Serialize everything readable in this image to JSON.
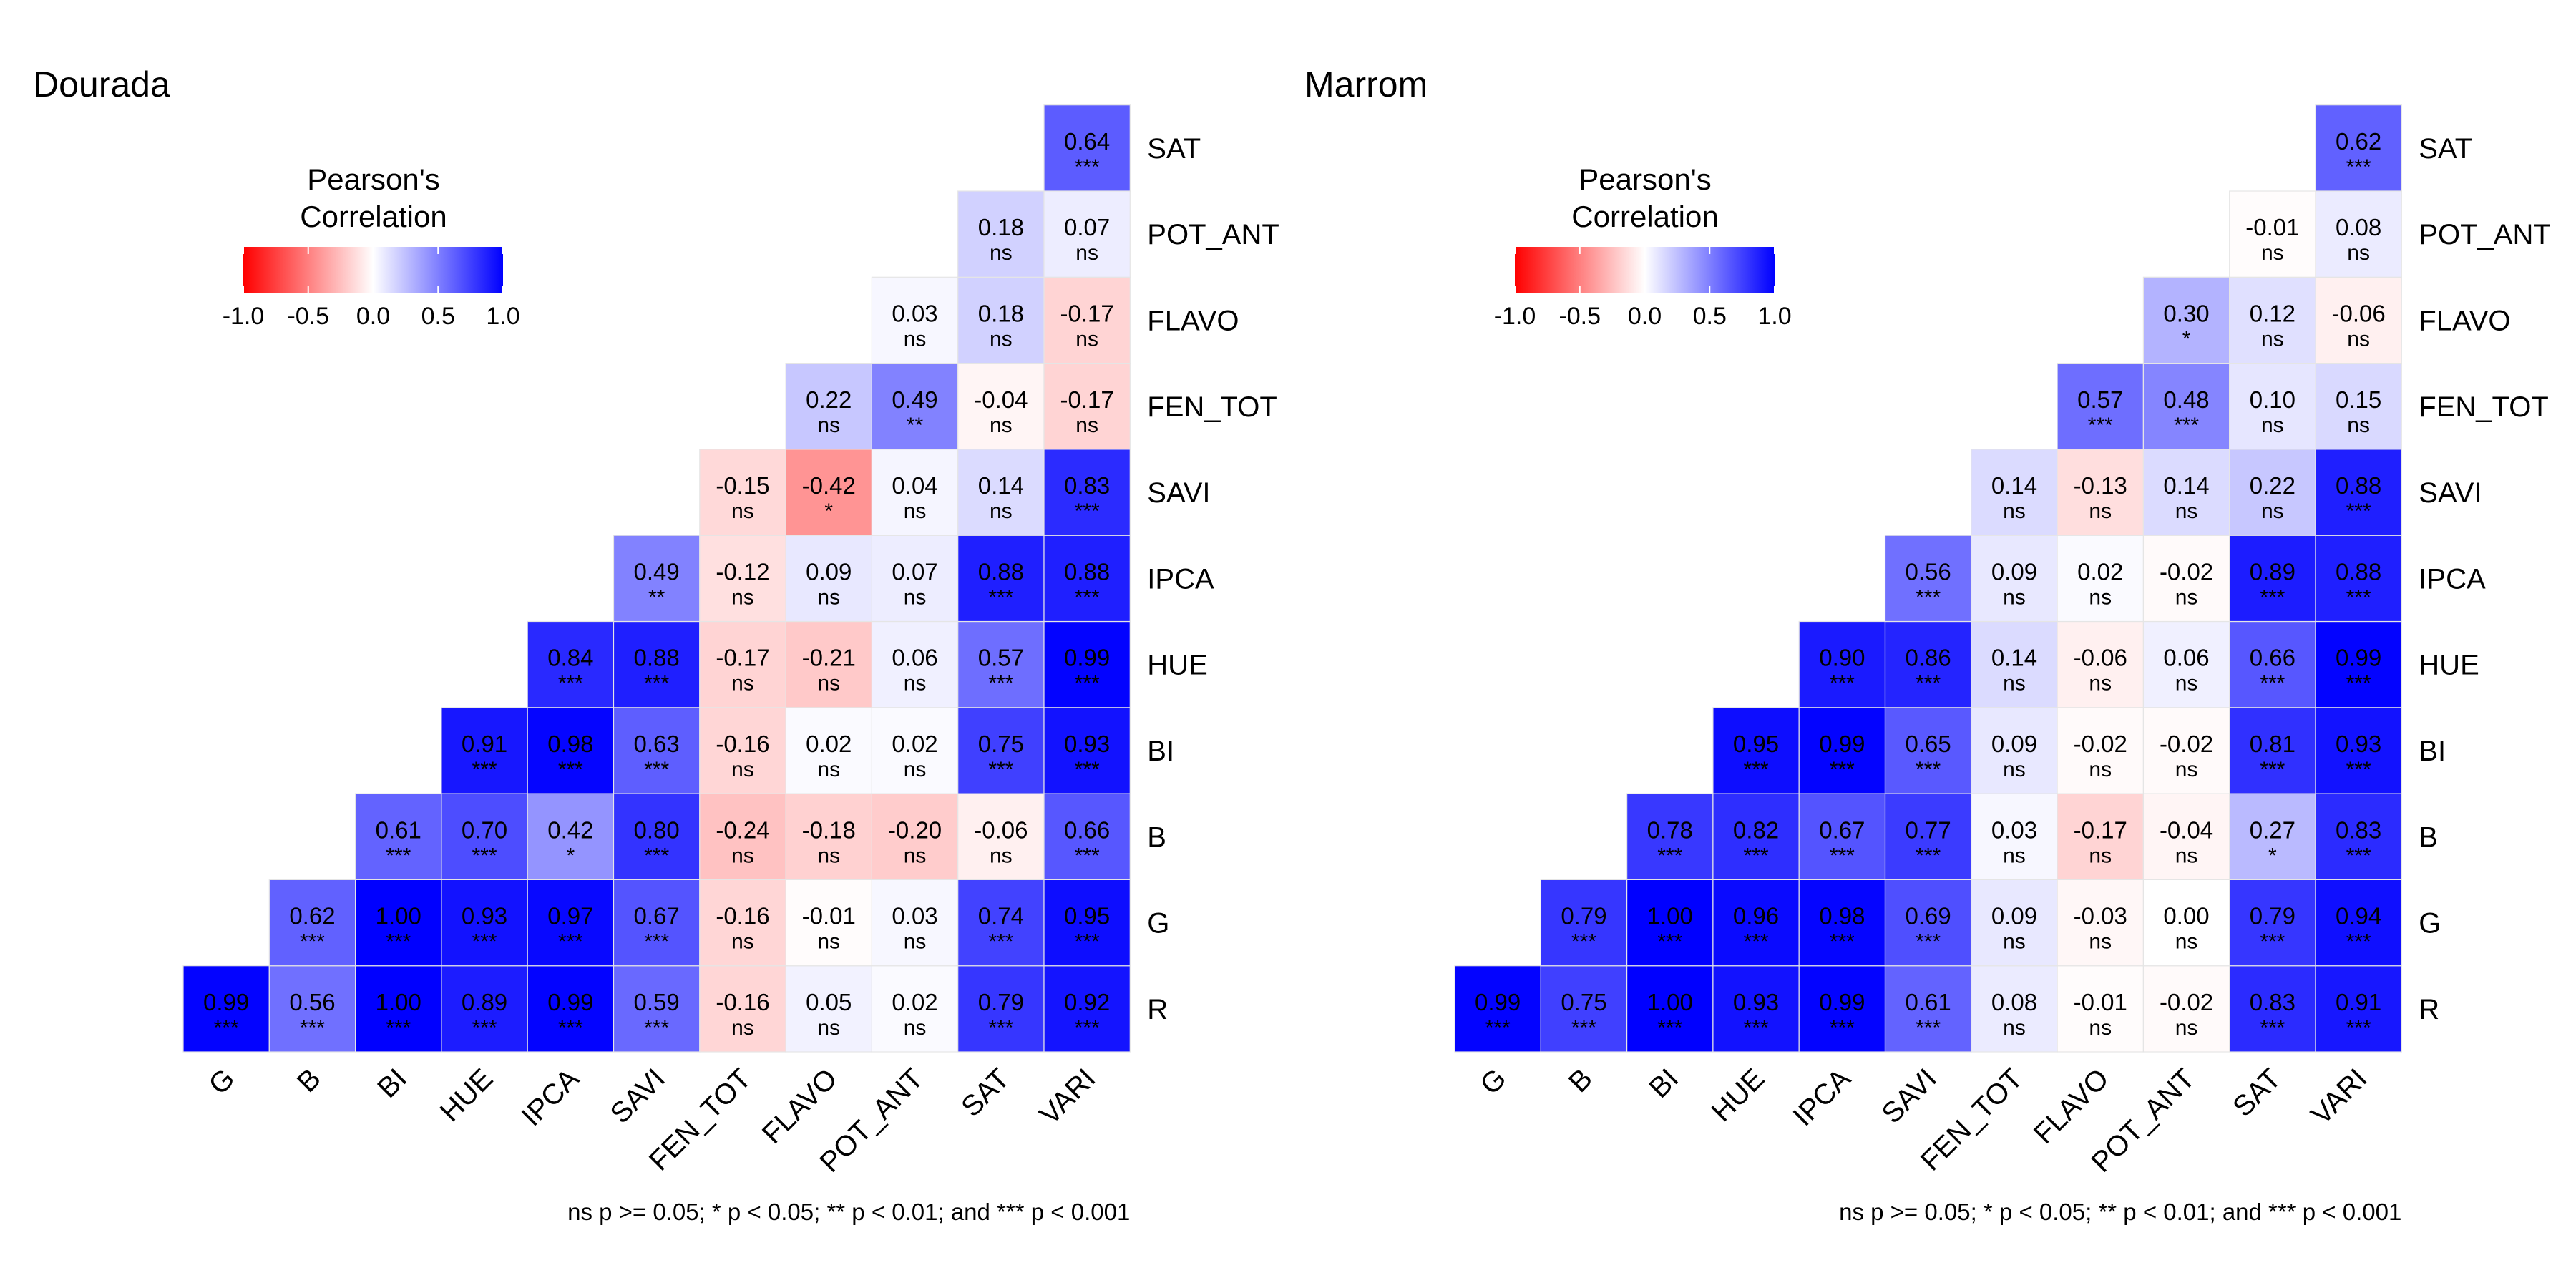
{
  "legend": {
    "title_line1": "Pearson's",
    "title_line2": "Correlation",
    "ticks": [
      "-1.0",
      "-0.5",
      "0.0",
      "0.5",
      "1.0"
    ],
    "tick_values": [
      -1,
      -0.5,
      0,
      0.5,
      1
    ]
  },
  "colors": {
    "low": "#ff0000",
    "mid": "#ffffff",
    "high": "#0000ff",
    "grid": "#e5e5e5"
  },
  "chart_data": [
    {
      "type": "heatmap",
      "title": "Dourada",
      "note": "ns p >= 0.05; * p < 0.05; ** p < 0.01; and *** p < 0.001",
      "x": [
        "G",
        "B",
        "BI",
        "HUE",
        "IPCA",
        "SAVI",
        "FEN_TOT",
        "FLAVO",
        "POT_ANT",
        "SAT",
        "VARI"
      ],
      "y": [
        "R",
        "G",
        "B",
        "BI",
        "HUE",
        "IPCA",
        "SAVI",
        "FEN_TOT",
        "FLAVO",
        "POT_ANT",
        "SAT"
      ],
      "values": [
        [
          0.99,
          0.56,
          1.0,
          0.89,
          0.99,
          0.59,
          -0.16,
          0.05,
          0.02,
          0.79,
          0.92
        ],
        [
          null,
          0.62,
          1.0,
          0.93,
          0.97,
          0.67,
          -0.16,
          -0.01,
          0.03,
          0.74,
          0.95
        ],
        [
          null,
          null,
          0.61,
          0.7,
          0.42,
          0.8,
          -0.24,
          -0.18,
          -0.2,
          -0.06,
          0.66
        ],
        [
          null,
          null,
          null,
          0.91,
          0.98,
          0.63,
          -0.16,
          0.02,
          0.02,
          0.75,
          0.93
        ],
        [
          null,
          null,
          null,
          null,
          0.84,
          0.88,
          -0.17,
          -0.21,
          0.06,
          0.57,
          0.99
        ],
        [
          null,
          null,
          null,
          null,
          null,
          0.49,
          -0.12,
          0.09,
          0.07,
          0.88,
          0.88
        ],
        [
          null,
          null,
          null,
          null,
          null,
          null,
          -0.15,
          -0.42,
          0.04,
          0.14,
          0.83
        ],
        [
          null,
          null,
          null,
          null,
          null,
          null,
          null,
          0.22,
          0.49,
          -0.04,
          -0.17
        ],
        [
          null,
          null,
          null,
          null,
          null,
          null,
          null,
          null,
          0.03,
          0.18,
          -0.17
        ],
        [
          null,
          null,
          null,
          null,
          null,
          null,
          null,
          null,
          null,
          0.18,
          0.07
        ],
        [
          null,
          null,
          null,
          null,
          null,
          null,
          null,
          null,
          null,
          null,
          0.64
        ]
      ],
      "labels": [
        [
          "0.99",
          "0.56",
          "1.00",
          "0.89",
          "0.99",
          "0.59",
          "-0.16",
          "0.05",
          "0.02",
          "0.79",
          "0.92"
        ],
        [
          null,
          "0.62",
          "1.00",
          "0.93",
          "0.97",
          "0.67",
          "-0.16",
          "-0.01",
          "0.03",
          "0.74",
          "0.95"
        ],
        [
          null,
          null,
          "0.61",
          "0.70",
          "0.42",
          "0.80",
          "-0.24",
          "-0.18",
          "-0.20",
          "-0.06",
          "0.66"
        ],
        [
          null,
          null,
          null,
          "0.91",
          "0.98",
          "0.63",
          "-0.16",
          "0.02",
          "0.02",
          "0.75",
          "0.93"
        ],
        [
          null,
          null,
          null,
          null,
          "0.84",
          "0.88",
          "-0.17",
          "-0.21",
          "0.06",
          "0.57",
          "0.99"
        ],
        [
          null,
          null,
          null,
          null,
          null,
          "0.49",
          "-0.12",
          "0.09",
          "0.07",
          "0.88",
          "0.88"
        ],
        [
          null,
          null,
          null,
          null,
          null,
          null,
          "-0.15",
          "-0.42",
          "0.04",
          "0.14",
          "0.83"
        ],
        [
          null,
          null,
          null,
          null,
          null,
          null,
          null,
          "0.22",
          "0.49",
          "-0.04",
          "-0.17"
        ],
        [
          null,
          null,
          null,
          null,
          null,
          null,
          null,
          null,
          "0.03",
          "0.18",
          "-0.17"
        ],
        [
          null,
          null,
          null,
          null,
          null,
          null,
          null,
          null,
          null,
          "0.18",
          "0.07"
        ],
        [
          null,
          null,
          null,
          null,
          null,
          null,
          null,
          null,
          null,
          null,
          "0.64"
        ]
      ],
      "significance": [
        [
          "***",
          "***",
          "***",
          "***",
          "***",
          "***",
          "ns",
          "ns",
          "ns",
          "***",
          "***"
        ],
        [
          null,
          "***",
          "***",
          "***",
          "***",
          "***",
          "ns",
          "ns",
          "ns",
          "***",
          "***"
        ],
        [
          null,
          null,
          "***",
          "***",
          "*",
          "***",
          "ns",
          "ns",
          "ns",
          "ns",
          "***"
        ],
        [
          null,
          null,
          null,
          "***",
          "***",
          "***",
          "ns",
          "ns",
          "ns",
          "***",
          "***"
        ],
        [
          null,
          null,
          null,
          null,
          "***",
          "***",
          "ns",
          "ns",
          "ns",
          "***",
          "***"
        ],
        [
          null,
          null,
          null,
          null,
          null,
          "**",
          "ns",
          "ns",
          "ns",
          "***",
          "***"
        ],
        [
          null,
          null,
          null,
          null,
          null,
          null,
          "ns",
          "*",
          "ns",
          "ns",
          "***"
        ],
        [
          null,
          null,
          null,
          null,
          null,
          null,
          null,
          "ns",
          "**",
          "ns",
          "ns"
        ],
        [
          null,
          null,
          null,
          null,
          null,
          null,
          null,
          null,
          "ns",
          "ns",
          "ns"
        ],
        [
          null,
          null,
          null,
          null,
          null,
          null,
          null,
          null,
          null,
          "ns",
          "ns"
        ],
        [
          null,
          null,
          null,
          null,
          null,
          null,
          null,
          null,
          null,
          null,
          "***"
        ]
      ]
    },
    {
      "type": "heatmap",
      "title": "Marrom",
      "note": "ns p >= 0.05; * p < 0.05; ** p < 0.01; and *** p < 0.001",
      "x": [
        "G",
        "B",
        "BI",
        "HUE",
        "IPCA",
        "SAVI",
        "FEN_TOT",
        "FLAVO",
        "POT_ANT",
        "SAT",
        "VARI"
      ],
      "y": [
        "R",
        "G",
        "B",
        "BI",
        "HUE",
        "IPCA",
        "SAVI",
        "FEN_TOT",
        "FLAVO",
        "POT_ANT",
        "SAT"
      ],
      "values": [
        [
          0.99,
          0.75,
          1.0,
          0.93,
          0.99,
          0.61,
          0.08,
          -0.01,
          -0.02,
          0.83,
          0.91
        ],
        [
          null,
          0.79,
          1.0,
          0.96,
          0.98,
          0.69,
          0.09,
          -0.03,
          0.0,
          0.79,
          0.94
        ],
        [
          null,
          null,
          0.78,
          0.82,
          0.67,
          0.77,
          0.03,
          -0.17,
          -0.04,
          0.27,
          0.83
        ],
        [
          null,
          null,
          null,
          0.95,
          0.99,
          0.65,
          0.09,
          -0.02,
          -0.02,
          0.81,
          0.93
        ],
        [
          null,
          null,
          null,
          null,
          0.9,
          0.86,
          0.14,
          -0.06,
          0.06,
          0.66,
          0.99
        ],
        [
          null,
          null,
          null,
          null,
          null,
          0.56,
          0.09,
          0.02,
          -0.02,
          0.89,
          0.88
        ],
        [
          null,
          null,
          null,
          null,
          null,
          null,
          0.14,
          -0.13,
          0.14,
          0.22,
          0.88
        ],
        [
          null,
          null,
          null,
          null,
          null,
          null,
          null,
          0.57,
          0.48,
          0.1,
          0.15
        ],
        [
          null,
          null,
          null,
          null,
          null,
          null,
          null,
          null,
          0.3,
          0.12,
          -0.06
        ],
        [
          null,
          null,
          null,
          null,
          null,
          null,
          null,
          null,
          null,
          -0.01,
          0.08
        ],
        [
          null,
          null,
          null,
          null,
          null,
          null,
          null,
          null,
          null,
          null,
          0.62
        ]
      ],
      "labels": [
        [
          "0.99",
          "0.75",
          "1.00",
          "0.93",
          "0.99",
          "0.61",
          "0.08",
          "-0.01",
          "-0.02",
          "0.83",
          "0.91"
        ],
        [
          null,
          "0.79",
          "1.00",
          "0.96",
          "0.98",
          "0.69",
          "0.09",
          "-0.03",
          "0.00",
          "0.79",
          "0.94"
        ],
        [
          null,
          null,
          "0.78",
          "0.82",
          "0.67",
          "0.77",
          "0.03",
          "-0.17",
          "-0.04",
          "0.27",
          "0.83"
        ],
        [
          null,
          null,
          null,
          "0.95",
          "0.99",
          "0.65",
          "0.09",
          "-0.02",
          "-0.02",
          "0.81",
          "0.93"
        ],
        [
          null,
          null,
          null,
          null,
          "0.90",
          "0.86",
          "0.14",
          "-0.06",
          "0.06",
          "0.66",
          "0.99"
        ],
        [
          null,
          null,
          null,
          null,
          null,
          "0.56",
          "0.09",
          "0.02",
          "-0.02",
          "0.89",
          "0.88"
        ],
        [
          null,
          null,
          null,
          null,
          null,
          null,
          "0.14",
          "-0.13",
          "0.14",
          "0.22",
          "0.88"
        ],
        [
          null,
          null,
          null,
          null,
          null,
          null,
          null,
          "0.57",
          "0.48",
          "0.10",
          "0.15"
        ],
        [
          null,
          null,
          null,
          null,
          null,
          null,
          null,
          null,
          "0.30",
          "0.12",
          "-0.06"
        ],
        [
          null,
          null,
          null,
          null,
          null,
          null,
          null,
          null,
          null,
          "-0.01",
          "0.08"
        ],
        [
          null,
          null,
          null,
          null,
          null,
          null,
          null,
          null,
          null,
          null,
          "0.62"
        ]
      ],
      "significance": [
        [
          "***",
          "***",
          "***",
          "***",
          "***",
          "***",
          "ns",
          "ns",
          "ns",
          "***",
          "***"
        ],
        [
          null,
          "***",
          "***",
          "***",
          "***",
          "***",
          "ns",
          "ns",
          "ns",
          "***",
          "***"
        ],
        [
          null,
          null,
          "***",
          "***",
          "***",
          "***",
          "ns",
          "ns",
          "ns",
          "*",
          "***"
        ],
        [
          null,
          null,
          null,
          "***",
          "***",
          "***",
          "ns",
          "ns",
          "ns",
          "***",
          "***"
        ],
        [
          null,
          null,
          null,
          null,
          "***",
          "***",
          "ns",
          "ns",
          "ns",
          "***",
          "***"
        ],
        [
          null,
          null,
          null,
          null,
          null,
          "***",
          "ns",
          "ns",
          "ns",
          "***",
          "***"
        ],
        [
          null,
          null,
          null,
          null,
          null,
          null,
          "ns",
          "ns",
          "ns",
          "ns",
          "***"
        ],
        [
          null,
          null,
          null,
          null,
          null,
          null,
          null,
          "***",
          "***",
          "ns",
          "ns"
        ],
        [
          null,
          null,
          null,
          null,
          null,
          null,
          null,
          null,
          "*",
          "ns",
          "ns"
        ],
        [
          null,
          null,
          null,
          null,
          null,
          null,
          null,
          null,
          null,
          "ns",
          "ns"
        ],
        [
          null,
          null,
          null,
          null,
          null,
          null,
          null,
          null,
          null,
          null,
          "***"
        ]
      ]
    }
  ]
}
